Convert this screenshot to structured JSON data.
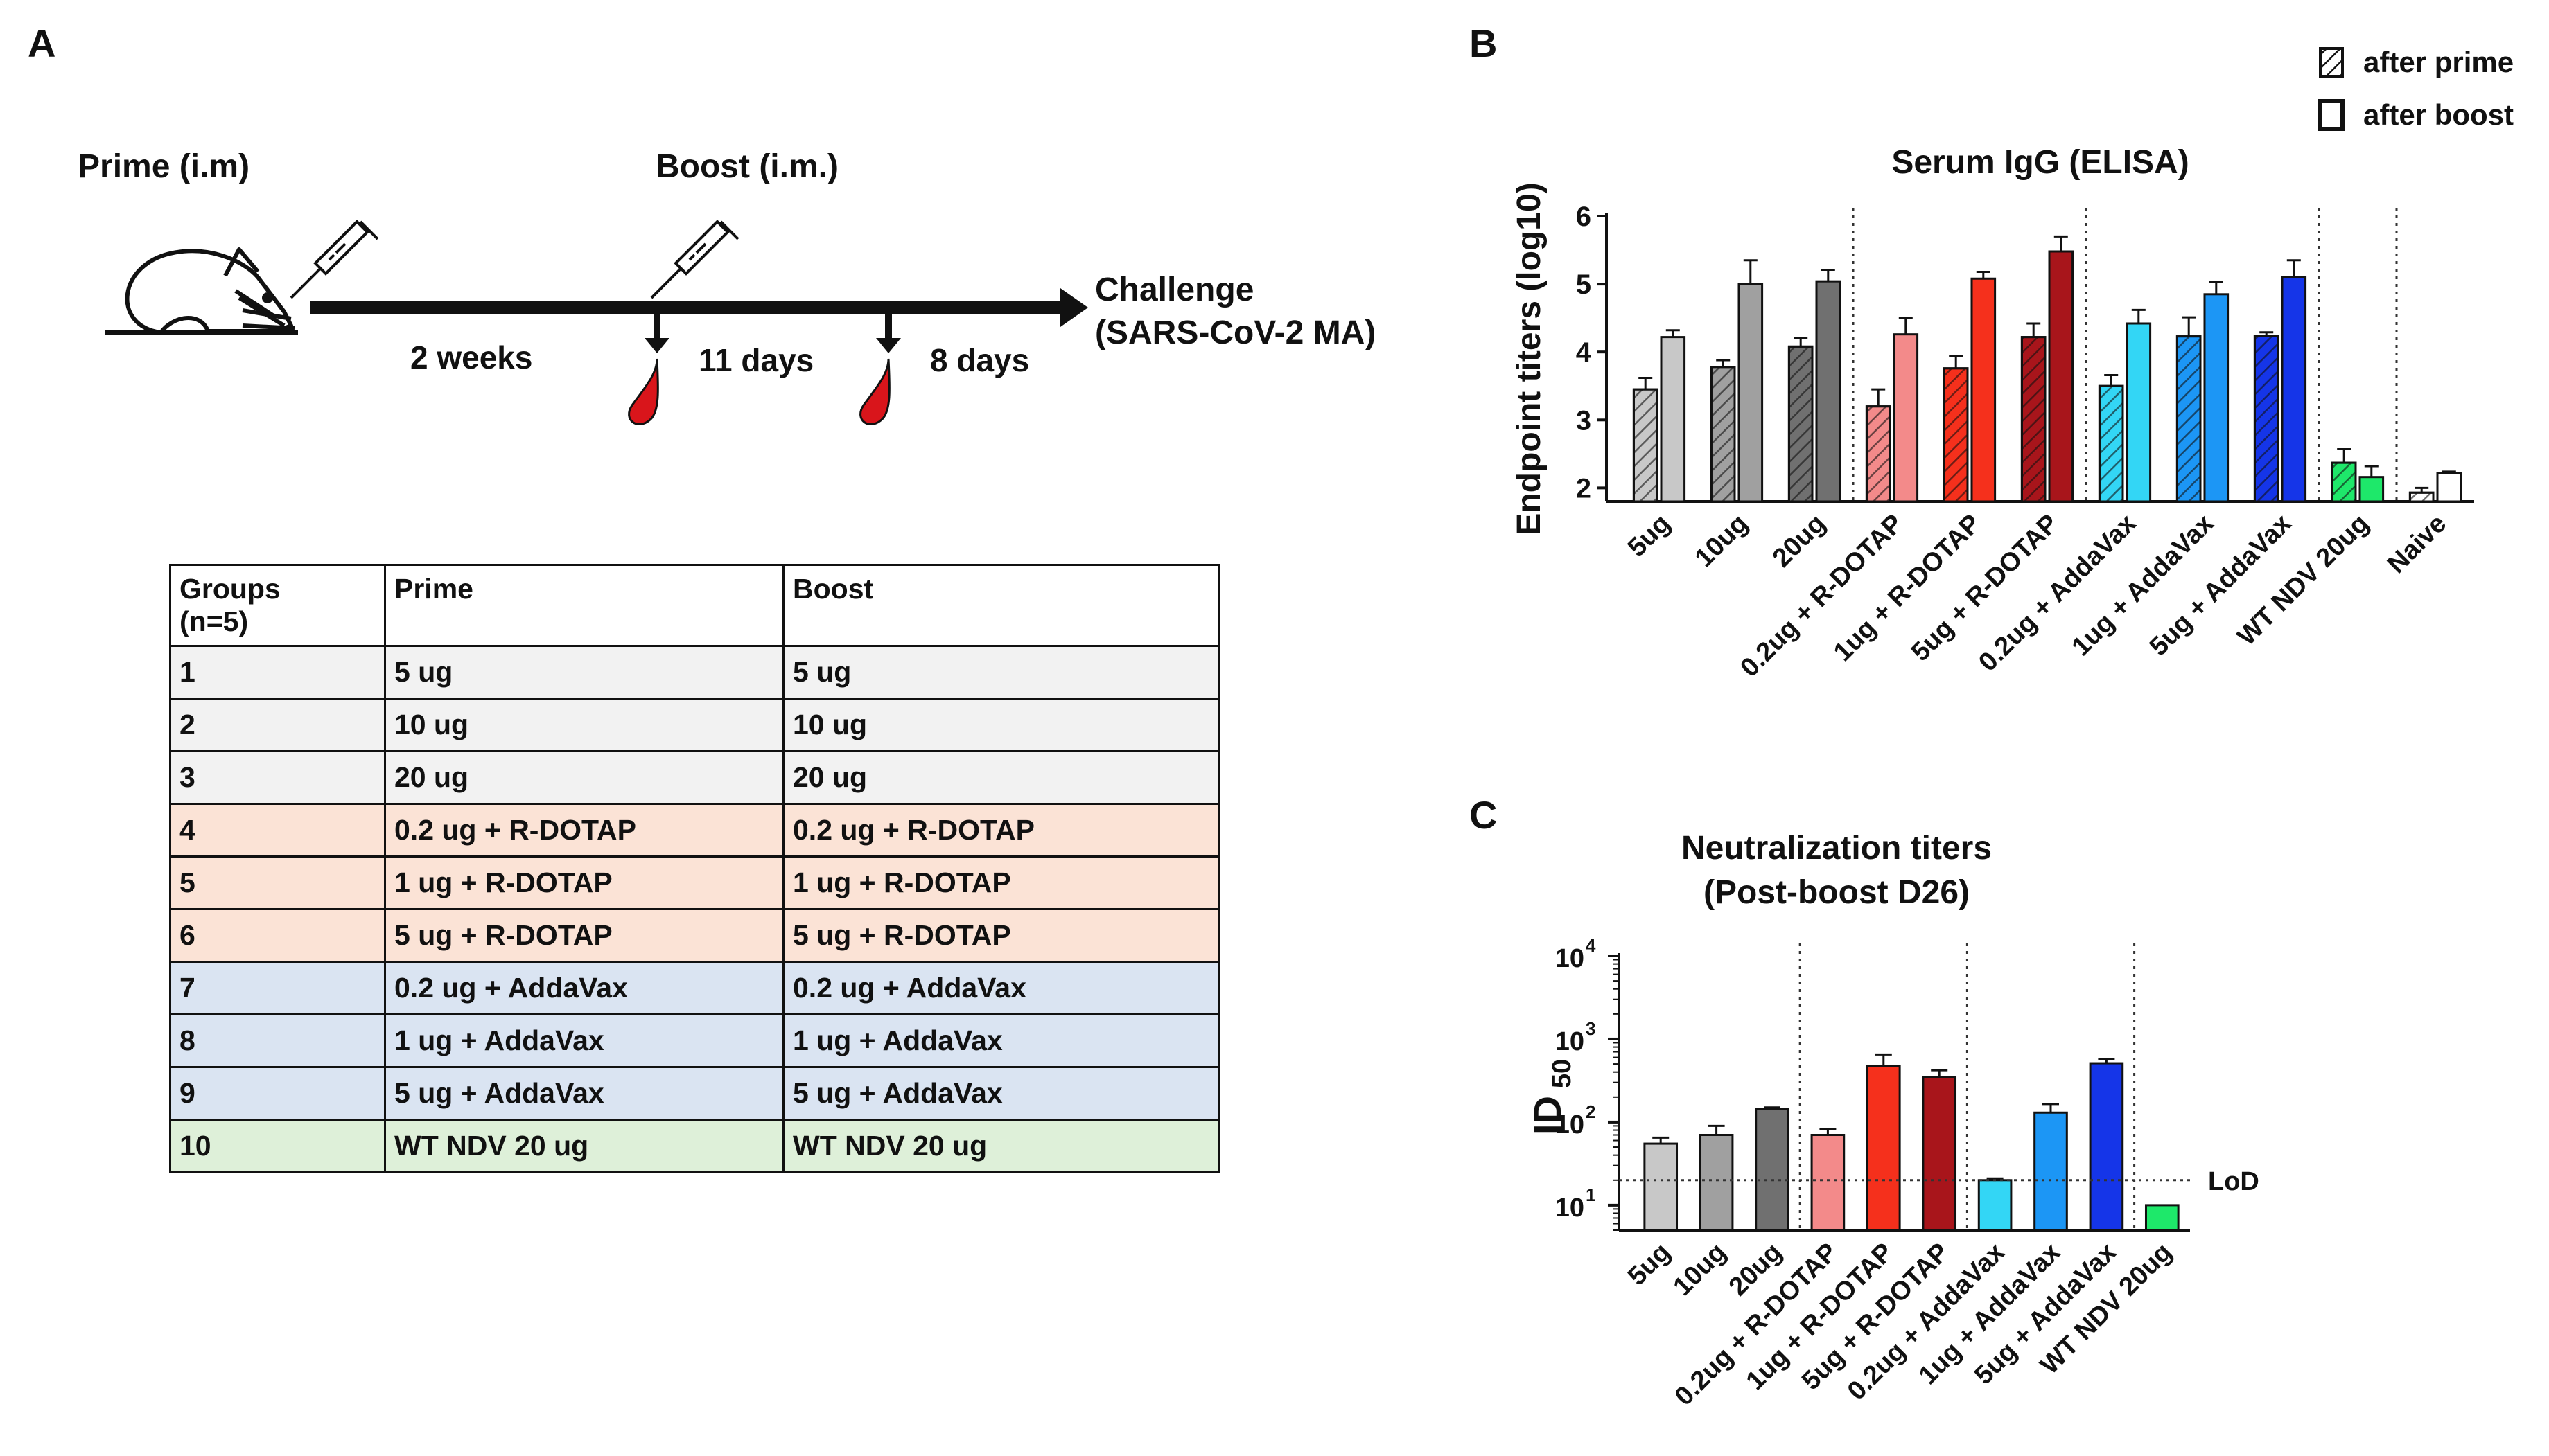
{
  "panels": {
    "a": "A",
    "b": "B",
    "c": "C"
  },
  "timeline": {
    "prime_label": "Prime (i.m)",
    "boost_label": "Boost (i.m.)",
    "challenge_line1": "Challenge",
    "challenge_line2": "(SARS-CoV-2 MA)",
    "interval1": "2 weeks",
    "interval2": "11 days",
    "interval3": "8 days",
    "blood_color": "#d9151b"
  },
  "table": {
    "headers": {
      "groups_line1": "Groups",
      "groups_line2": "(n=5)",
      "prime": "Prime",
      "boost": "Boost"
    },
    "rows": [
      {
        "group": "1",
        "prime": "5 ug",
        "boost": "5 ug",
        "color": "#f2f2f2"
      },
      {
        "group": "2",
        "prime": "10 ug",
        "boost": "10 ug",
        "color": "#f2f2f2"
      },
      {
        "group": "3",
        "prime": "20 ug",
        "boost": "20 ug",
        "color": "#f2f2f2"
      },
      {
        "group": "4",
        "prime": "0.2 ug  + R-DOTAP",
        "boost": "0.2 ug + R-DOTAP",
        "color": "#fbe3d6"
      },
      {
        "group": "5",
        "prime": "1 ug + R-DOTAP",
        "boost": "1 ug + R-DOTAP",
        "color": "#fbe3d6"
      },
      {
        "group": "6",
        "prime": "5 ug + R-DOTAP",
        "boost": "5 ug + R-DOTAP",
        "color": "#fbe3d6"
      },
      {
        "group": "7",
        "prime": "0.2 ug + AddaVax",
        "boost": "0.2 ug + AddaVax",
        "color": "#dae4f2"
      },
      {
        "group": "8",
        "prime": "1 ug + AddaVax",
        "boost": "1 ug + AddaVax",
        "color": "#dae4f2"
      },
      {
        "group": "9",
        "prime": "5 ug + AddaVax",
        "boost": "5 ug + AddaVax",
        "color": "#dae4f2"
      },
      {
        "group": "10",
        "prime": "WT NDV 20 ug",
        "boost": "WT NDV 20 ug",
        "color": "#def0d9"
      }
    ]
  },
  "chart_data": [
    {
      "type": "bar",
      "title": "Serum IgG (ELISA)",
      "xlabel": "",
      "ylabel": "Endpoint titers (log10)",
      "ylim": [
        1.8,
        6
      ],
      "yticks": [
        "2",
        "3",
        "4",
        "5",
        "6"
      ],
      "legend": {
        "placement": "top-right",
        "entries": [
          "after prime",
          "after boost"
        ]
      },
      "categories": [
        "5ug",
        "10ug",
        "20ug",
        "0.2ug + R-DOTAP",
        "1ug + R-DOTAP",
        "5ug + R-DOTAP",
        "0.2ug + AddaVax",
        "1ug + AddaVax",
        "5ug + AddaVax",
        "WT NDV 20ug",
        "Naive"
      ],
      "colors": [
        "#c8c8c8",
        "#a0a0a0",
        "#707070",
        "#f38a8a",
        "#f5301c",
        "#a8151b",
        "#33d6f5",
        "#1c96f5",
        "#1535e8",
        "#1ee86a",
        "#ffffff"
      ],
      "series": [
        {
          "name": "after prime",
          "values": [
            3.45,
            3.78,
            4.08,
            3.2,
            3.76,
            4.22,
            3.5,
            4.23,
            4.24,
            2.37,
            1.93
          ],
          "errors": [
            0.17,
            0.1,
            0.13,
            0.25,
            0.18,
            0.2,
            0.16,
            0.28,
            0.05,
            0.2,
            0.07
          ]
        },
        {
          "name": "after boost",
          "values": [
            4.22,
            5.0,
            5.04,
            4.26,
            5.08,
            5.48,
            4.42,
            4.85,
            5.1,
            2.16,
            2.22
          ],
          "errors": [
            0.1,
            0.35,
            0.17,
            0.24,
            0.1,
            0.22,
            0.2,
            0.18,
            0.25,
            0.16,
            0.02
          ]
        }
      ],
      "separators_after": [
        "20ug",
        "5ug + R-DOTAP",
        "5ug + AddaVax",
        "WT NDV 20ug"
      ]
    },
    {
      "type": "bar",
      "title_line1": "Neutralization  titers",
      "title_line2": "(Post-boost D26)",
      "xlabel": "",
      "ylabel": "ID",
      "ylabel_sub": "50",
      "yscale": "log",
      "ylim": [
        5,
        10000
      ],
      "yticks": [
        {
          "base": "10",
          "exp": "1"
        },
        {
          "base": "10",
          "exp": "2"
        },
        {
          "base": "10",
          "exp": "3"
        },
        {
          "base": "10",
          "exp": "4"
        }
      ],
      "lod": {
        "label": "LoD",
        "value": 20
      },
      "categories": [
        "5ug",
        "10ug",
        "20ug",
        "0.2ug + R-DOTAP",
        "1ug + R-DOTAP",
        "5ug + R-DOTAP",
        "0.2ug + AddaVax",
        "1ug + AddaVax",
        "5ug + AddaVax",
        "WT NDV 20ug"
      ],
      "colors": [
        "#c8c8c8",
        "#a0a0a0",
        "#707070",
        "#f38a8a",
        "#f5301c",
        "#a8151b",
        "#33d6f5",
        "#1c96f5",
        "#1535e8",
        "#1ee86a"
      ],
      "values": [
        55,
        70,
        145,
        70,
        470,
        350,
        20,
        130,
        510,
        10
      ],
      "errors_upper": [
        65,
        90,
        150,
        82,
        650,
        420,
        21,
        165,
        570,
        10
      ],
      "separators_after": [
        "20ug",
        "5ug + R-DOTAP",
        "5ug + AddaVax"
      ]
    }
  ]
}
